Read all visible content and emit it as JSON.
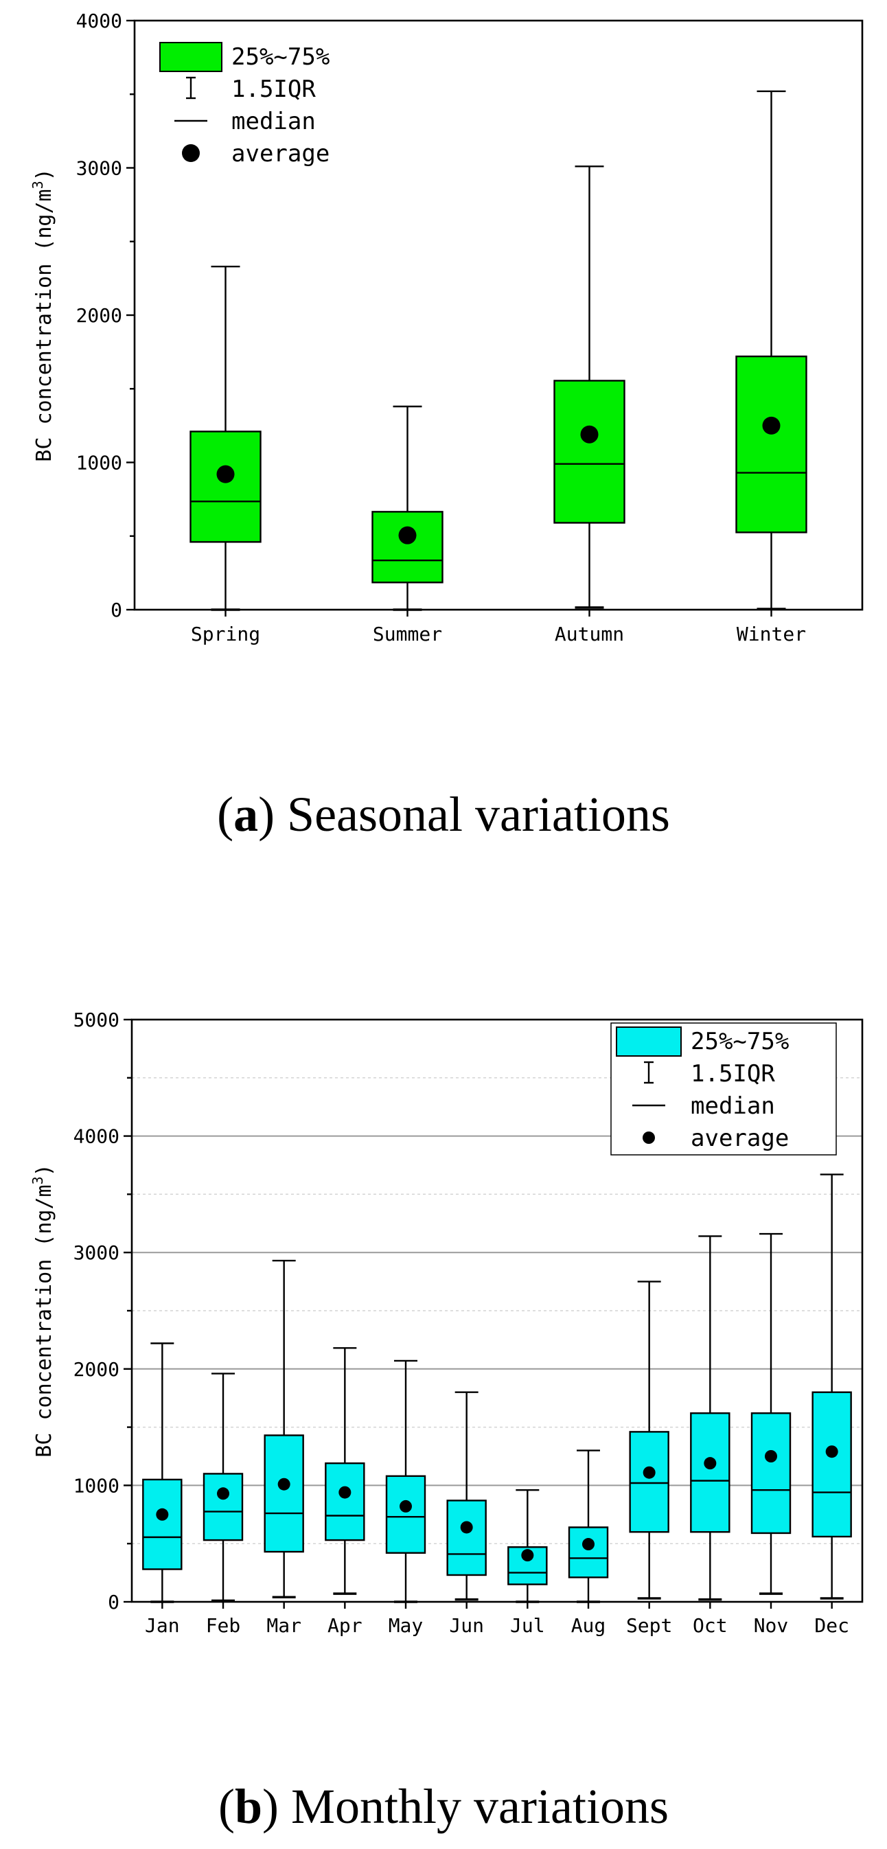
{
  "chart_data": [
    {
      "id": "a",
      "type": "box",
      "caption": {
        "letter": "a",
        "text": "Seasonal variations"
      },
      "ylabel": "BC concentration (ng/m3)",
      "ylabel_parts": {
        "main": "BC concentration (ng/m",
        "sup": "3",
        "close": ")"
      },
      "xlabel": "",
      "ylim": [
        0,
        4000
      ],
      "yticks": [
        0,
        1000,
        2000,
        3000,
        4000
      ],
      "minor_ytick_step": 500,
      "grid": false,
      "legend_position": "top-left",
      "box_color": "#00ee00",
      "legend": {
        "box": "25%~75%",
        "whisker": "1.5IQR",
        "median": "median",
        "average": "average"
      },
      "categories": [
        "Spring",
        "Summer",
        "Autumn",
        "Winter"
      ],
      "stats": [
        {
          "min": 0,
          "q1": 460,
          "median": 735,
          "q3": 1210,
          "max": 2330,
          "mean": 920
        },
        {
          "min": 0,
          "q1": 185,
          "median": 335,
          "q3": 665,
          "max": 1380,
          "mean": 505
        },
        {
          "min": 15,
          "q1": 590,
          "median": 990,
          "q3": 1555,
          "max": 3010,
          "mean": 1190
        },
        {
          "min": 5,
          "q1": 525,
          "median": 930,
          "q3": 1720,
          "max": 3520,
          "mean": 1250
        }
      ]
    },
    {
      "id": "b",
      "type": "box",
      "caption": {
        "letter": "b",
        "text": "Monthly variations"
      },
      "ylabel": "BC concentration (ng/m3)",
      "ylabel_parts": {
        "main": "BC concentration (ng/m",
        "sup": "3",
        "close": ")"
      },
      "xlabel": "",
      "ylim": [
        0,
        5000
      ],
      "yticks": [
        0,
        1000,
        2000,
        3000,
        4000,
        5000
      ],
      "minor_ytick_step": 500,
      "grid": true,
      "legend_position": "top-right",
      "box_color": "#00efef",
      "legend": {
        "box": "25%~75%",
        "whisker": "1.5IQR",
        "median": "median",
        "average": "average"
      },
      "categories": [
        "Jan",
        "Feb",
        "Mar",
        "Apr",
        "May",
        "Jun",
        "Jul",
        "Aug",
        "Sept",
        "Oct",
        "Nov",
        "Dec"
      ],
      "stats": [
        {
          "min": 0,
          "q1": 280,
          "median": 555,
          "q3": 1050,
          "max": 2220,
          "mean": 750
        },
        {
          "min": 10,
          "q1": 530,
          "median": 775,
          "q3": 1100,
          "max": 1960,
          "mean": 930
        },
        {
          "min": 40,
          "q1": 430,
          "median": 760,
          "q3": 1430,
          "max": 2930,
          "mean": 1010
        },
        {
          "min": 70,
          "q1": 530,
          "median": 740,
          "q3": 1190,
          "max": 2180,
          "mean": 940
        },
        {
          "min": 0,
          "q1": 420,
          "median": 730,
          "q3": 1080,
          "max": 2070,
          "mean": 820
        },
        {
          "min": 20,
          "q1": 230,
          "median": 410,
          "q3": 870,
          "max": 1800,
          "mean": 640
        },
        {
          "min": 0,
          "q1": 150,
          "median": 250,
          "q3": 470,
          "max": 960,
          "mean": 400
        },
        {
          "min": 0,
          "q1": 210,
          "median": 375,
          "q3": 640,
          "max": 1300,
          "mean": 495
        },
        {
          "min": 30,
          "q1": 600,
          "median": 1020,
          "q3": 1460,
          "max": 2750,
          "mean": 1110
        },
        {
          "min": 20,
          "q1": 600,
          "median": 1040,
          "q3": 1620,
          "max": 3140,
          "mean": 1190
        },
        {
          "min": 70,
          "q1": 590,
          "median": 960,
          "q3": 1620,
          "max": 3160,
          "mean": 1250
        },
        {
          "min": 30,
          "q1": 560,
          "median": 940,
          "q3": 1800,
          "max": 3670,
          "mean": 1290
        }
      ]
    }
  ]
}
